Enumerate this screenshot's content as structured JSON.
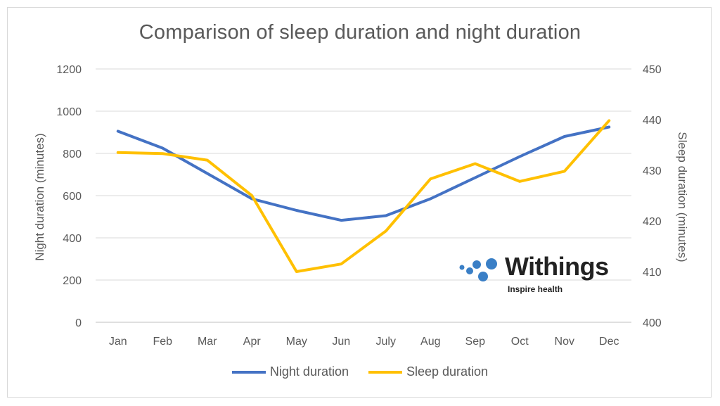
{
  "chart_data": {
    "type": "line",
    "title": "Comparison of sleep duration and night duration",
    "categories": [
      "Jan",
      "Feb",
      "Mar",
      "Apr",
      "May",
      "Jun",
      "July",
      "Aug",
      "Sep",
      "Oct",
      "Nov",
      "Dec"
    ],
    "ylabel": "Night duration (minutes)",
    "y2label": "Sleep duration (minutes)",
    "ylim": [
      0,
      1200
    ],
    "yticks": [
      0,
      200,
      400,
      600,
      800,
      1000,
      1200
    ],
    "y2lim": [
      400,
      450
    ],
    "y2ticks": [
      400,
      410,
      420,
      430,
      440,
      450
    ],
    "grid": true,
    "legend_position": "bottom",
    "series": [
      {
        "name": "Night duration",
        "axis": "left",
        "color": "#4472C4",
        "values": [
          905,
          825,
          705,
          585,
          530,
          483,
          505,
          585,
          685,
          785,
          880,
          925
        ]
      },
      {
        "name": "Sleep duration",
        "axis": "right",
        "color": "#FFC000",
        "values": [
          433.5,
          433.3,
          432.0,
          425.0,
          410.0,
          411.5,
          418.0,
          428.3,
          431.3,
          427.8,
          429.8,
          439.8
        ]
      }
    ]
  },
  "logo": {
    "word": "Withings",
    "tagline": "Inspire health",
    "color": "#3a7fc6"
  }
}
